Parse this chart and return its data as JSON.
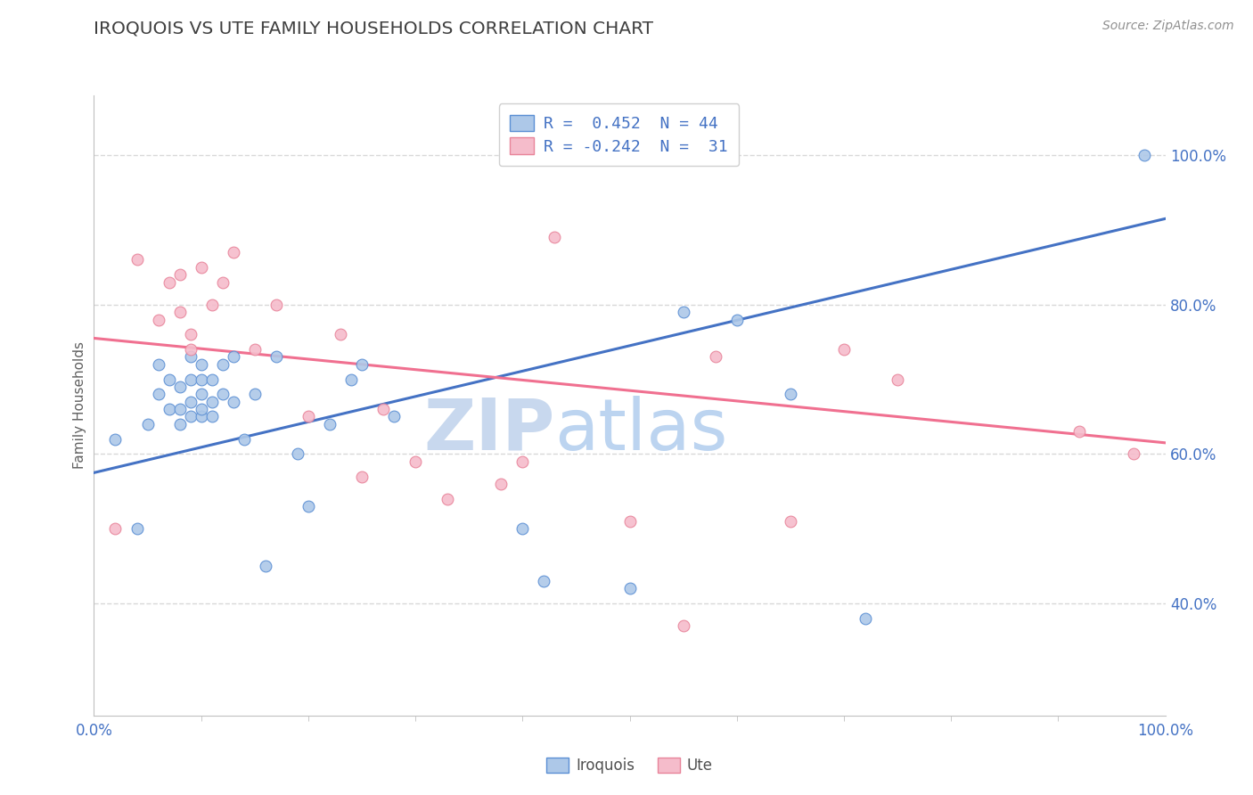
{
  "title": "IROQUOIS VS UTE FAMILY HOUSEHOLDS CORRELATION CHART",
  "source": "Source: ZipAtlas.com",
  "ylabel": "Family Households",
  "legend_r1": "R =  0.452  N = 44",
  "legend_r2": "R = -0.242  N =  31",
  "iroquois_color": "#adc8e8",
  "ute_color": "#f5bccb",
  "iroquois_edge_color": "#5b8fd4",
  "ute_edge_color": "#e8849a",
  "iroquois_line_color": "#4472c4",
  "ute_line_color": "#f07090",
  "title_color": "#404040",
  "axis_label_color": "#4472c4",
  "legend_text_color": "#4472c4",
  "watermark_color": "#dce8f5",
  "background_color": "#ffffff",
  "grid_color": "#d8d8d8",
  "iroquois_x": [
    0.02,
    0.04,
    0.05,
    0.06,
    0.06,
    0.07,
    0.07,
    0.08,
    0.08,
    0.08,
    0.09,
    0.09,
    0.09,
    0.09,
    0.1,
    0.1,
    0.1,
    0.1,
    0.1,
    0.11,
    0.11,
    0.11,
    0.12,
    0.12,
    0.13,
    0.13,
    0.14,
    0.15,
    0.16,
    0.17,
    0.19,
    0.2,
    0.22,
    0.24,
    0.25,
    0.28,
    0.4,
    0.42,
    0.5,
    0.55,
    0.6,
    0.65,
    0.72,
    0.98
  ],
  "iroquois_y": [
    0.62,
    0.5,
    0.64,
    0.68,
    0.72,
    0.66,
    0.7,
    0.64,
    0.66,
    0.69,
    0.65,
    0.67,
    0.7,
    0.73,
    0.65,
    0.66,
    0.68,
    0.7,
    0.72,
    0.65,
    0.67,
    0.7,
    0.68,
    0.72,
    0.67,
    0.73,
    0.62,
    0.68,
    0.45,
    0.73,
    0.6,
    0.53,
    0.64,
    0.7,
    0.72,
    0.65,
    0.5,
    0.43,
    0.42,
    0.79,
    0.78,
    0.68,
    0.38,
    1.0
  ],
  "ute_x": [
    0.02,
    0.04,
    0.06,
    0.07,
    0.08,
    0.08,
    0.09,
    0.09,
    0.1,
    0.11,
    0.12,
    0.13,
    0.15,
    0.17,
    0.2,
    0.23,
    0.25,
    0.27,
    0.3,
    0.33,
    0.38,
    0.4,
    0.43,
    0.5,
    0.55,
    0.58,
    0.65,
    0.7,
    0.75,
    0.92,
    0.97
  ],
  "ute_y": [
    0.5,
    0.86,
    0.78,
    0.83,
    0.79,
    0.84,
    0.74,
    0.76,
    0.85,
    0.8,
    0.83,
    0.87,
    0.74,
    0.8,
    0.65,
    0.76,
    0.57,
    0.66,
    0.59,
    0.54,
    0.56,
    0.59,
    0.89,
    0.51,
    0.37,
    0.73,
    0.51,
    0.74,
    0.7,
    0.63,
    0.6
  ],
  "iroquois_trend": [
    0.575,
    0.915
  ],
  "ute_trend": [
    0.755,
    0.615
  ],
  "xlim": [
    0.0,
    1.0
  ],
  "ylim": [
    0.25,
    1.08
  ],
  "right_yticks": [
    1.0,
    0.8,
    0.6,
    0.4
  ],
  "right_yticklabels": [
    "100.0%",
    "80.0%",
    "60.0%",
    "40.0%"
  ]
}
